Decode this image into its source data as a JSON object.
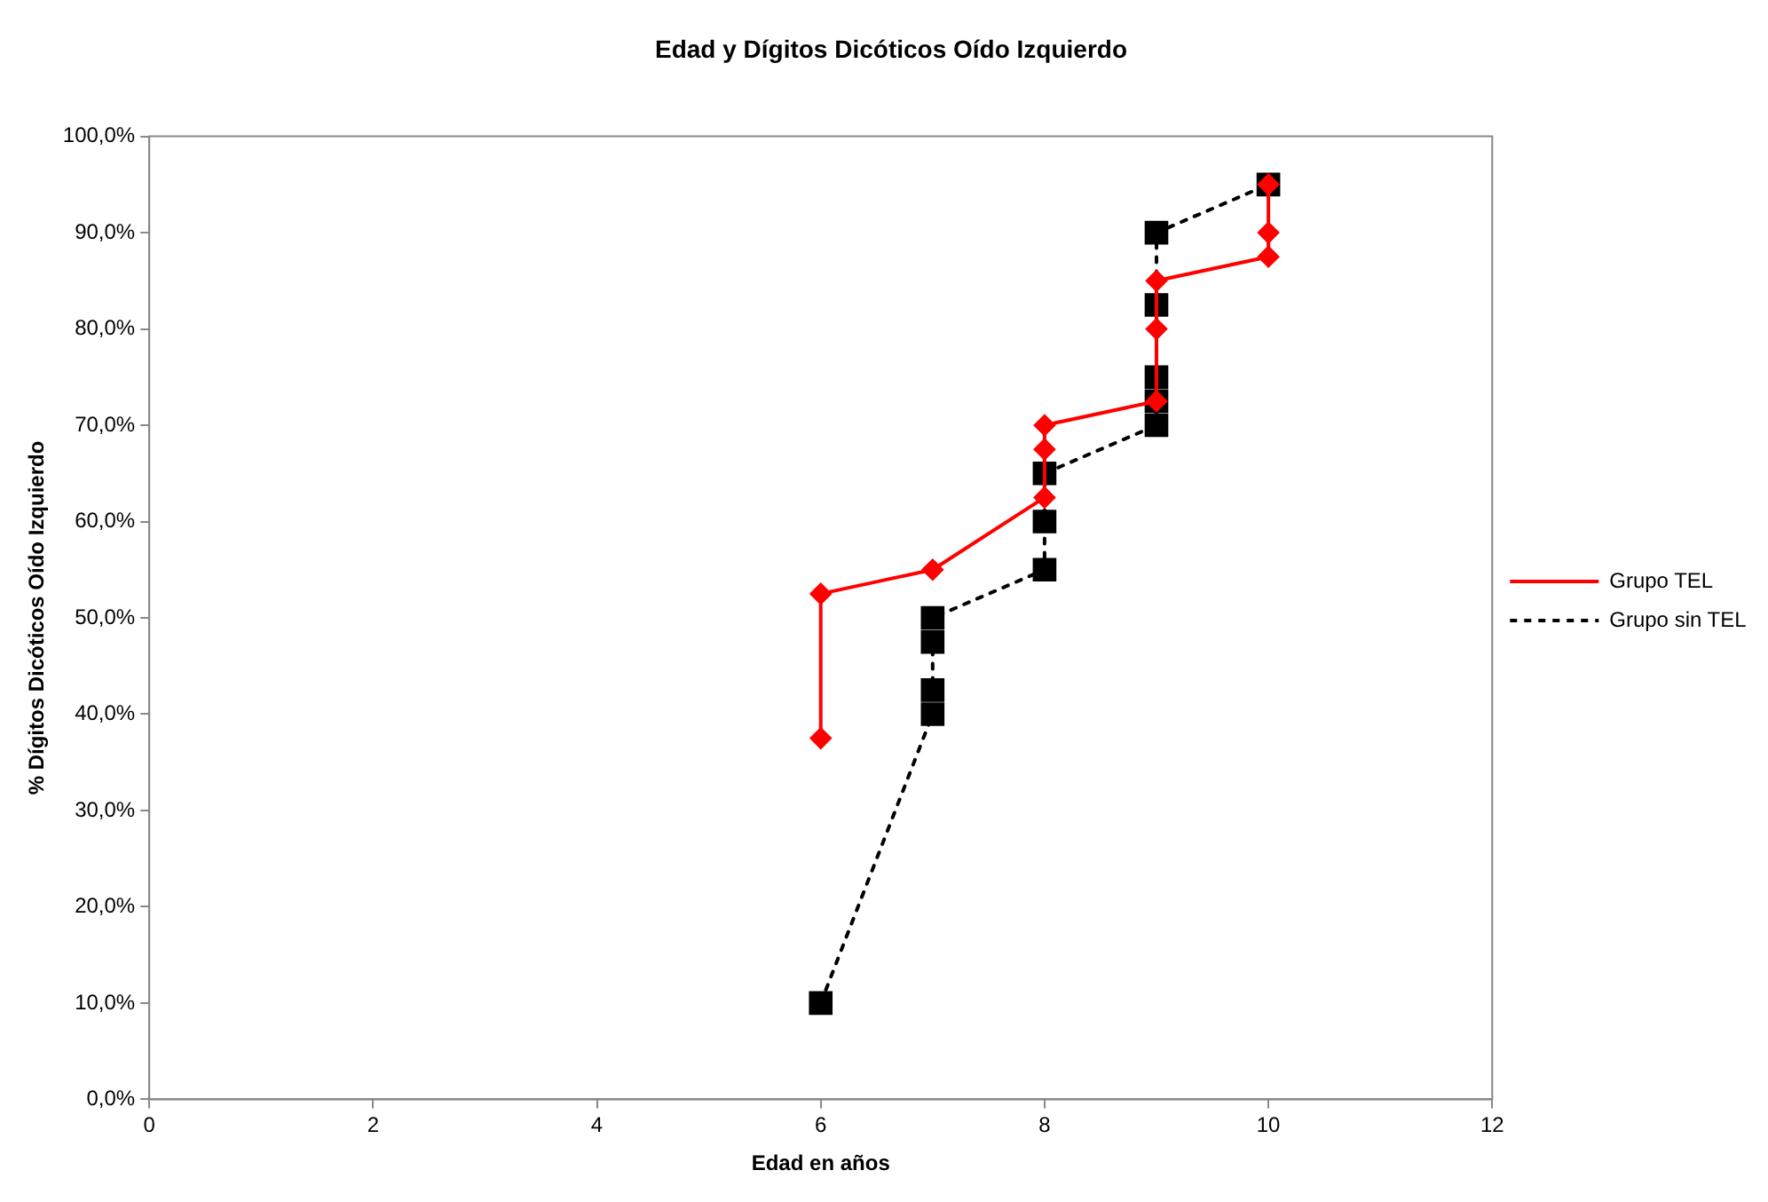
{
  "chart_data": {
    "type": "line",
    "title": "Edad y Dígitos Dicóticos Oído Izquierdo",
    "xlabel": "Edad en años",
    "ylabel": "% Dígitos Dicóticos Oído Izquierdo",
    "xlim": [
      0,
      12
    ],
    "xticks": [
      0,
      2,
      4,
      6,
      8,
      10,
      12
    ],
    "ylim": [
      0,
      100
    ],
    "yticks": [
      {
        "value": 0,
        "label": "0,0%"
      },
      {
        "value": 10,
        "label": "10,0%"
      },
      {
        "value": 20,
        "label": "20,0%"
      },
      {
        "value": 30,
        "label": "30,0%"
      },
      {
        "value": 40,
        "label": "40,0%"
      },
      {
        "value": 50,
        "label": "50,0%"
      },
      {
        "value": 60,
        "label": "60,0%"
      },
      {
        "value": 70,
        "label": "70,0%"
      },
      {
        "value": 80,
        "label": "80,0%"
      },
      {
        "value": 90,
        "label": "90,0%"
      },
      {
        "value": 100,
        "label": "100,0%"
      }
    ],
    "grid": false,
    "legend": "right",
    "series": [
      {
        "name": "Grupo TEL",
        "color": "#ff0000",
        "marker": "diamond",
        "line_style": "solid",
        "x": [
          6,
          6,
          7,
          8,
          8,
          8,
          9,
          9,
          9,
          10,
          10,
          10
        ],
        "values": [
          37.5,
          52.5,
          55,
          62.5,
          67.5,
          70,
          72.5,
          80,
          85,
          87.5,
          90,
          95
        ]
      },
      {
        "name": "Grupo sin TEL",
        "color": "#000000",
        "marker": "square",
        "line_style": "dotted",
        "x": [
          6,
          7,
          7,
          7,
          7,
          8,
          8,
          8,
          9,
          9,
          9,
          9,
          9,
          10
        ],
        "values": [
          10,
          40,
          42.5,
          47.5,
          50,
          55,
          60,
          65,
          70,
          72.5,
          75,
          82.5,
          90,
          95
        ]
      }
    ]
  }
}
